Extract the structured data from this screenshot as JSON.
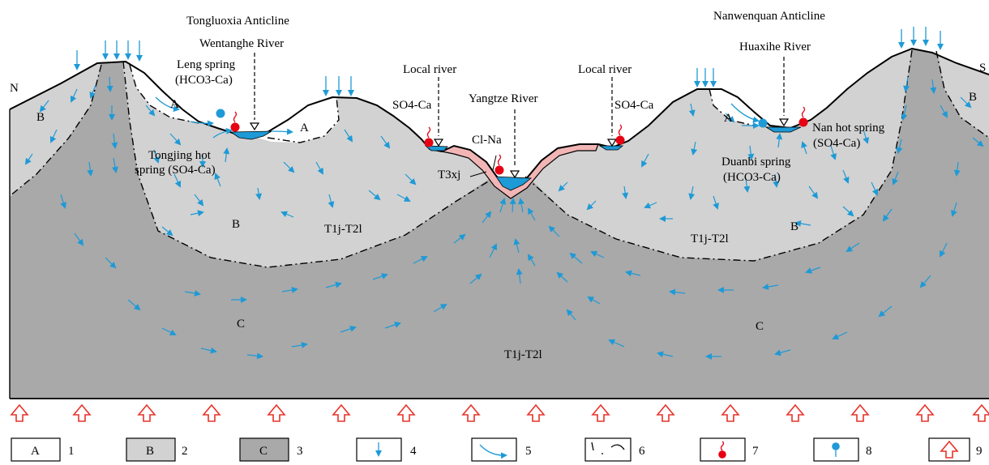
{
  "labels": {
    "north": "N",
    "south": "S",
    "tongluoxia": "Tongluoxia Anticline",
    "nanwenquan": "Nanwenquan Anticline",
    "wentanghe": "Wentanghe River",
    "huaxihe": "Huaxihe River",
    "local_river_1": "Local river",
    "local_river_2": "Local river",
    "yangtze": "Yangtze River",
    "leng_spring_1": "Leng spring",
    "leng_spring_2": "(HCO3-Ca)",
    "tongjing_1": "Tongjing hot",
    "tongjing_2": "spring (SO4-Ca)",
    "so4ca_1": "SO4-Ca",
    "so4ca_2": "SO4-Ca",
    "clna": "Cl-Na",
    "t3xj": "T3xj",
    "nan_1": "Nan hot spring",
    "nan_2": "(SO4-Ca)",
    "duanbi_1": "Duanbi spring",
    "duanbi_2": "(HCO3-Ca)",
    "zone_a": "A",
    "zone_b": "B",
    "zone_c": "C",
    "strata": "T1j-T2l"
  },
  "legend": [
    {
      "symbol": "A",
      "num": "1"
    },
    {
      "symbol": "B",
      "num": "2"
    },
    {
      "symbol": "C",
      "num": "3"
    },
    {
      "symbol": "down-arrow-icon",
      "num": "4"
    },
    {
      "symbol": "curved-arrow-icon",
      "num": "5"
    },
    {
      "symbol": "boundary-line-icon",
      "num": "6"
    },
    {
      "symbol": "hot-spring-icon",
      "num": "7"
    },
    {
      "symbol": "cold-spring-icon",
      "num": "8"
    },
    {
      "symbol": "heat-flow-arrow-icon",
      "num": "9"
    }
  ],
  "colors": {
    "zone_a": "#ffffff",
    "zone_b": "#d2d2d2",
    "zone_c": "#a9a9a9",
    "flow": "#1e9ad6",
    "hot_spring": "#e60012",
    "cold_spring": "#1e9ad6",
    "heat_flow": "#e8322a",
    "t3xj": "#f2b5b5",
    "water": "#1e9ad6"
  }
}
